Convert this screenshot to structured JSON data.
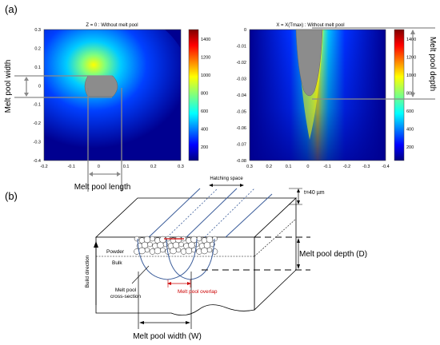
{
  "panel_a": {
    "label": "(a)",
    "left_plot": {
      "title": "Z = 0 : Without melt pool",
      "x_ticks": [
        "-0.2",
        "-0.1",
        "0",
        "0.1",
        "0.2",
        "0.3"
      ],
      "y_ticks": [
        "0.3",
        "0.2",
        "0.1",
        "0",
        "-0.1",
        "-0.2",
        "-0.3",
        "-0.4"
      ],
      "colorbar_ticks": [
        "1400",
        "1200",
        "1000",
        "800",
        "600",
        "400",
        "200"
      ],
      "annotation_width": "Melt pool width",
      "annotation_length": "Melt pool length"
    },
    "right_plot": {
      "title": "X = X(Tmax) : Without melt pool",
      "x_ticks": [
        "0.3",
        "0.2",
        "0.1",
        "0",
        "-0.1",
        "-0.2",
        "-0.3",
        "-0.4"
      ],
      "y_ticks": [
        "0",
        "-0.01",
        "-0.02",
        "-0.03",
        "-0.04",
        "-0.05",
        "-0.06",
        "-0.07",
        "-0.08"
      ],
      "colorbar_ticks": [
        "1400",
        "1200",
        "1000",
        "800",
        "600",
        "400",
        "200"
      ],
      "annotation_depth": "Melt pool depth"
    }
  },
  "panel_b": {
    "label": "(b)",
    "hatching_space": "Hatching space",
    "layer_thickness": "t=40 µm",
    "powder": "Powder",
    "bulk": "Bulk",
    "build_direction": "Build direction",
    "cross_section": [
      "Melt pool",
      "cross-section"
    ],
    "overlap": "Melt pool overlap",
    "depth_label": "Melt pool depth (D)",
    "width_label": "Melt pool width (W)"
  },
  "colors": {
    "jet": [
      "#00007f",
      "#0000ff",
      "#007fff",
      "#00ffff",
      "#7fff7f",
      "#ffff00",
      "#ff7f00",
      "#ff0000",
      "#7f0000"
    ],
    "pool_gray": "#8c8c8c",
    "annotation_gray": "#8a8a8a",
    "overlap_red": "#cc0000",
    "track_blue": "#3a5c9a"
  }
}
